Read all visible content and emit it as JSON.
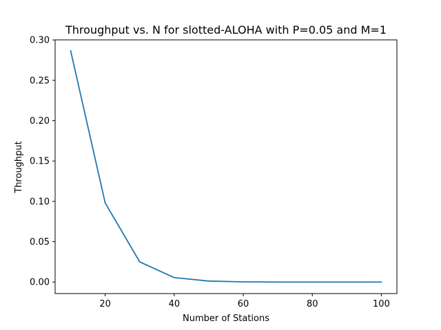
{
  "chart_data": {
    "type": "line",
    "title": "Throughput vs. N for slotted-ALOHA with P=0.05 and M=1",
    "xlabel": "Number of Stations",
    "ylabel": "Throughput",
    "xlim": [
      5.5,
      104.5
    ],
    "ylim": [
      -0.0143,
      0.3001
    ],
    "xticks": [
      20,
      40,
      60,
      80,
      100
    ],
    "xtick_labels": [
      "20",
      "40",
      "60",
      "80",
      "100"
    ],
    "yticks": [
      0.0,
      0.05,
      0.1,
      0.15,
      0.2,
      0.25,
      0.3
    ],
    "ytick_labels": [
      "0.00",
      "0.05",
      "0.10",
      "0.15",
      "0.20",
      "0.25",
      "0.30"
    ],
    "grid": false,
    "legend": false,
    "series": [
      {
        "color": "#1f77b4",
        "x": [
          10,
          20,
          30,
          40,
          50,
          60,
          70,
          80,
          90,
          100
        ],
        "values": [
          0.2865,
          0.098,
          0.025,
          0.0055,
          0.0012,
          0.0002,
          0.0,
          0.0,
          0.0,
          0.0
        ]
      }
    ]
  }
}
